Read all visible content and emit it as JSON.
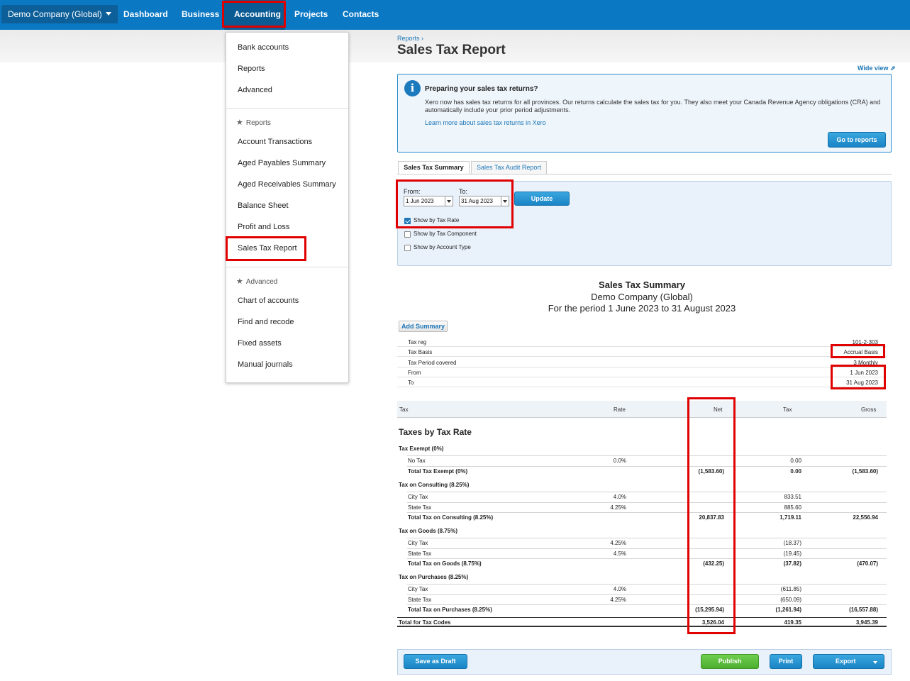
{
  "nav": {
    "company": "Demo Company (Global)",
    "links": [
      "Dashboard",
      "Business",
      "Accounting",
      "Projects",
      "Contacts"
    ]
  },
  "menu": {
    "top_items": [
      "Bank accounts",
      "Reports",
      "Advanced"
    ],
    "reports_header": "Reports",
    "report_items": [
      "Account Transactions",
      "Aged Payables Summary",
      "Aged Receivables Summary",
      "Balance Sheet",
      "Profit and Loss",
      "Sales Tax Report"
    ],
    "advanced_header": "Advanced",
    "advanced_items": [
      "Chart of accounts",
      "Find and recode",
      "Fixed assets",
      "Manual journals"
    ]
  },
  "page": {
    "breadcrumb": "Reports ›",
    "title": "Sales Tax Report",
    "wide_view": "Wide view"
  },
  "info": {
    "title": "Preparing your sales tax returns?",
    "body": "Xero now has sales tax returns for all provinces. Our returns calculate the sales tax for you. They also meet your Canada Revenue Agency obligations (CRA) and automatically include your prior period adjustments.",
    "link": "Learn more about sales tax returns in Xero",
    "button": "Go to reports"
  },
  "tabs": [
    "Sales Tax Summary",
    "Sales Tax Audit Report"
  ],
  "filter": {
    "from_label": "From:",
    "from_value": "1 Jun 2023",
    "to_label": "To:",
    "to_value": "31 Aug 2023",
    "update": "Update",
    "options": [
      {
        "label": "Show by Tax Rate",
        "checked": true
      },
      {
        "label": "Show by Tax Component",
        "checked": false
      },
      {
        "label": "Show by Account Type",
        "checked": false
      }
    ]
  },
  "report": {
    "title": "Sales Tax Summary",
    "company": "Demo Company (Global)",
    "period": "For the period 1 June 2023 to 31 August 2023",
    "add_summary": "Add Summary",
    "meta": [
      {
        "k": "Tax reg",
        "v": "101-2-303"
      },
      {
        "k": "Tax Basis",
        "v": "Accrual Basis"
      },
      {
        "k": "Tax Period covered",
        "v": "3 Monthly"
      },
      {
        "k": "From",
        "v": "1 Jun 2023"
      },
      {
        "k": "To",
        "v": "31 Aug 2023"
      }
    ],
    "columns": [
      "Tax",
      "Rate",
      "Net",
      "Tax",
      "Gross"
    ],
    "section": "Taxes by Tax Rate",
    "groups": [
      {
        "name": "Tax Exempt (0%)",
        "rows": [
          {
            "label": "No Tax",
            "rate": "0.0%",
            "net": "",
            "tax": "0.00",
            "gross": ""
          },
          {
            "label": "Total Tax Exempt (0%)",
            "rate": "",
            "net": "(1,583.60)",
            "tax": "0.00",
            "gross": "(1,583.60)",
            "total": true
          }
        ]
      },
      {
        "name": "Tax on Consulting (8.25%)",
        "rows": [
          {
            "label": "City Tax",
            "rate": "4.0%",
            "net": "",
            "tax": "833.51",
            "gross": ""
          },
          {
            "label": "State Tax",
            "rate": "4.25%",
            "net": "",
            "tax": "885.60",
            "gross": ""
          },
          {
            "label": "Total Tax on Consulting (8.25%)",
            "rate": "",
            "net": "20,837.83",
            "tax": "1,719.11",
            "gross": "22,556.94",
            "total": true
          }
        ]
      },
      {
        "name": "Tax on Goods (8.75%)",
        "rows": [
          {
            "label": "City Tax",
            "rate": "4.25%",
            "net": "",
            "tax": "(18.37)",
            "gross": ""
          },
          {
            "label": "State Tax",
            "rate": "4.5%",
            "net": "",
            "tax": "(19.45)",
            "gross": ""
          },
          {
            "label": "Total Tax on Goods (8.75%)",
            "rate": "",
            "net": "(432.25)",
            "tax": "(37.82)",
            "gross": "(470.07)",
            "total": true
          }
        ]
      },
      {
        "name": "Tax on Purchases (8.25%)",
        "rows": [
          {
            "label": "City Tax",
            "rate": "4.0%",
            "net": "",
            "tax": "(611.85)",
            "gross": ""
          },
          {
            "label": "State Tax",
            "rate": "4.25%",
            "net": "",
            "tax": "(650.09)",
            "gross": ""
          },
          {
            "label": "Total Tax on Purchases (8.25%)",
            "rate": "",
            "net": "(15,295.94)",
            "tax": "(1,261.94)",
            "gross": "(16,557.88)",
            "total": true
          }
        ]
      }
    ],
    "grand_total": {
      "label": "Total for Tax Codes",
      "net": "3,526.04",
      "tax": "419.35",
      "gross": "3,945.39"
    }
  },
  "actions": {
    "save_draft": "Save as Draft",
    "publish": "Publish",
    "print": "Print",
    "export": "Export"
  },
  "colors": {
    "nav": "#0b78c4",
    "accent": "#1c76b8",
    "highlight": "#e00000",
    "publish": "#4cae2f"
  }
}
